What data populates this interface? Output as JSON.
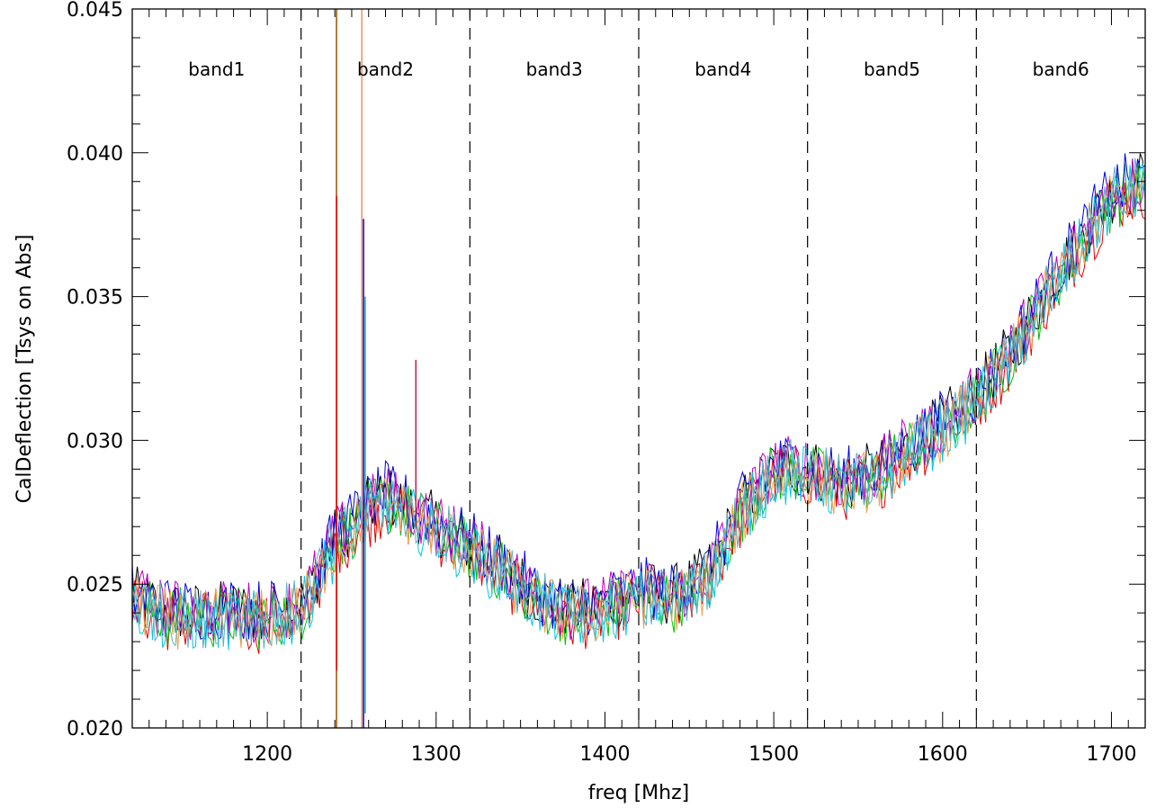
{
  "chart_data": {
    "type": "line",
    "title": "",
    "xlabel": "freq [Mhz]",
    "ylabel": "CalDeflection [Tsys on Abs]",
    "xlim": [
      1120,
      1720
    ],
    "ylim": [
      0.02,
      0.045
    ],
    "x_ticks": [
      1200,
      1300,
      1400,
      1500,
      1600,
      1700
    ],
    "x_tick_labels": [
      "1200",
      "1300",
      "1400",
      "1500",
      "1600",
      "1700"
    ],
    "y_ticks": [
      0.02,
      0.025,
      0.03,
      0.035,
      0.04,
      0.045
    ],
    "y_tick_labels": [
      "0.020",
      "0.025",
      "0.030",
      "0.035",
      "0.040",
      "0.045"
    ],
    "grid": false,
    "legend": "none",
    "band_boundaries": [
      1220,
      1320,
      1420,
      1520,
      1620
    ],
    "bands": [
      {
        "label": "band1",
        "center": 1170
      },
      {
        "label": "band2",
        "center": 1270
      },
      {
        "label": "band3",
        "center": 1370
      },
      {
        "label": "band4",
        "center": 1470
      },
      {
        "label": "band5",
        "center": 1570
      },
      {
        "label": "band6",
        "center": 1670
      }
    ],
    "x": [
      1120,
      1140,
      1160,
      1180,
      1200,
      1220,
      1240,
      1260,
      1270,
      1280,
      1300,
      1320,
      1340,
      1360,
      1380,
      1400,
      1420,
      1440,
      1460,
      1480,
      1500,
      1520,
      1540,
      1560,
      1580,
      1600,
      1620,
      1640,
      1660,
      1680,
      1700,
      1720
    ],
    "mean_curve": [
      0.0245,
      0.024,
      0.0239,
      0.024,
      0.0239,
      0.0242,
      0.0265,
      0.0276,
      0.028,
      0.0277,
      0.027,
      0.0263,
      0.0255,
      0.0245,
      0.024,
      0.0242,
      0.0247,
      0.0245,
      0.0252,
      0.0275,
      0.029,
      0.029,
      0.0285,
      0.0288,
      0.0297,
      0.0305,
      0.0315,
      0.033,
      0.035,
      0.0368,
      0.0385,
      0.039
    ],
    "spikes": [
      {
        "x": 1241,
        "top": 0.045,
        "bottom": 0.02,
        "color": "#a05000"
      },
      {
        "x": 1241,
        "top": 0.0385,
        "bottom": 0.022,
        "color": "#e00000"
      },
      {
        "x": 1256,
        "top": 0.045,
        "bottom": 0.02,
        "color": "#f09060"
      },
      {
        "x": 1257,
        "top": 0.0377,
        "bottom": 0.02,
        "color": "#0000e0"
      },
      {
        "x": 1258,
        "top": 0.035,
        "bottom": 0.0205,
        "color": "#20b0a0"
      },
      {
        "x": 1288,
        "top": 0.0328,
        "bottom": 0.027,
        "color": "#c02040"
      }
    ],
    "series": [
      {
        "color": "#000000"
      },
      {
        "color": "#e00000"
      },
      {
        "color": "#00c000"
      },
      {
        "color": "#0000e0"
      },
      {
        "color": "#c000c0"
      },
      {
        "color": "#00c8e0"
      },
      {
        "color": "#f0a050"
      },
      {
        "color": "#60b0c0"
      }
    ]
  }
}
